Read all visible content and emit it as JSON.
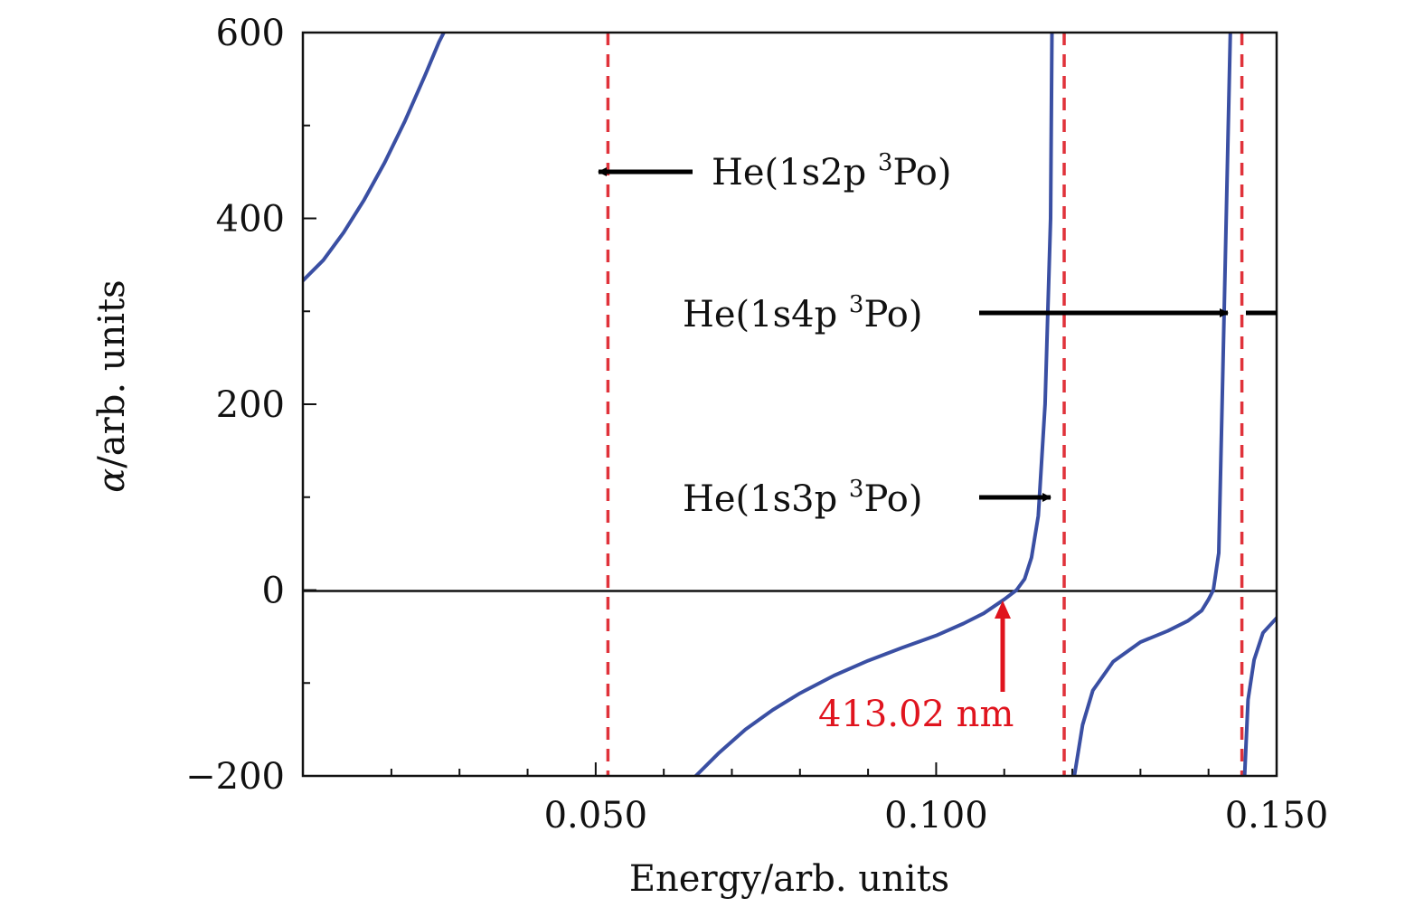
{
  "chart_data": {
    "type": "line",
    "title": "",
    "xlabel": "Energy/arb. units",
    "ylabel_symbol": "α",
    "ylabel_rest": "/arb. units",
    "xlim": [
      0.007,
      0.15
    ],
    "ylim": [
      -200,
      600
    ],
    "xticks_major": [
      {
        "value": 0.05,
        "label": "0.050"
      },
      {
        "value": 0.1,
        "label": "0.100"
      },
      {
        "value": 0.15,
        "label": "0.150"
      }
    ],
    "xticks_minor": [
      0.02,
      0.03,
      0.04,
      0.06,
      0.07,
      0.08,
      0.09,
      0.11,
      0.12,
      0.13,
      0.14
    ],
    "yticks_major": [
      {
        "value": 600,
        "label": "600"
      },
      {
        "value": 400,
        "label": "400"
      },
      {
        "value": 200,
        "label": "200"
      },
      {
        "value": 0,
        "label": "0"
      },
      {
        "value": -200,
        "label": "−200"
      }
    ],
    "yticks_minor": [
      500,
      300,
      100,
      -100
    ],
    "zero_line": 0,
    "line_color": "#3a4fa3",
    "resonance_color": "#e0323a",
    "annotation_color": "#e0141e",
    "resonances": [
      0.0518,
      0.1188,
      0.1449
    ],
    "series": [
      {
        "values": [
          [
            0.007,
            333
          ],
          [
            0.01,
            355
          ],
          [
            0.013,
            385
          ],
          [
            0.016,
            420
          ],
          [
            0.019,
            460
          ],
          [
            0.022,
            505
          ],
          [
            0.025,
            555
          ],
          [
            0.027,
            590
          ],
          [
            0.0277,
            600
          ]
        ]
      },
      {
        "values": [
          [
            0.0647,
            -200
          ],
          [
            0.068,
            -176
          ],
          [
            0.072,
            -150
          ],
          [
            0.076,
            -129
          ],
          [
            0.08,
            -111
          ],
          [
            0.085,
            -92
          ],
          [
            0.09,
            -76
          ],
          [
            0.095,
            -62
          ],
          [
            0.1,
            -49
          ],
          [
            0.104,
            -36
          ],
          [
            0.107,
            -25
          ],
          [
            0.11,
            -10
          ],
          [
            0.1118,
            0
          ],
          [
            0.113,
            12
          ],
          [
            0.114,
            35
          ],
          [
            0.115,
            80
          ],
          [
            0.116,
            200
          ],
          [
            0.1168,
            400
          ],
          [
            0.117,
            600
          ]
        ]
      },
      {
        "values": [
          [
            0.1203,
            -200
          ],
          [
            0.1215,
            -145
          ],
          [
            0.123,
            -108
          ],
          [
            0.126,
            -77
          ],
          [
            0.13,
            -56
          ],
          [
            0.134,
            -44
          ],
          [
            0.137,
            -33
          ],
          [
            0.139,
            -22
          ],
          [
            0.14,
            -10
          ],
          [
            0.1407,
            0
          ],
          [
            0.1415,
            40
          ],
          [
            0.142,
            200
          ],
          [
            0.1432,
            600
          ]
        ]
      },
      {
        "values": [
          [
            0.1453,
            -200
          ],
          [
            0.1458,
            -118
          ],
          [
            0.1467,
            -75
          ],
          [
            0.148,
            -46
          ],
          [
            0.15,
            -30
          ]
        ]
      }
    ],
    "annotations": [
      {
        "text": "He(1s2p ",
        "sup": "3",
        "text2": "Po)",
        "state": "1s2p"
      },
      {
        "text": "He(1s4p ",
        "sup": "3",
        "text2": "Po)",
        "state": "1s4p"
      },
      {
        "text": "He(1s3p ",
        "sup": "3",
        "text2": "Po)",
        "state": "1s3p"
      },
      {
        "text": "413.02 nm",
        "energy": 0.1118
      }
    ]
  }
}
